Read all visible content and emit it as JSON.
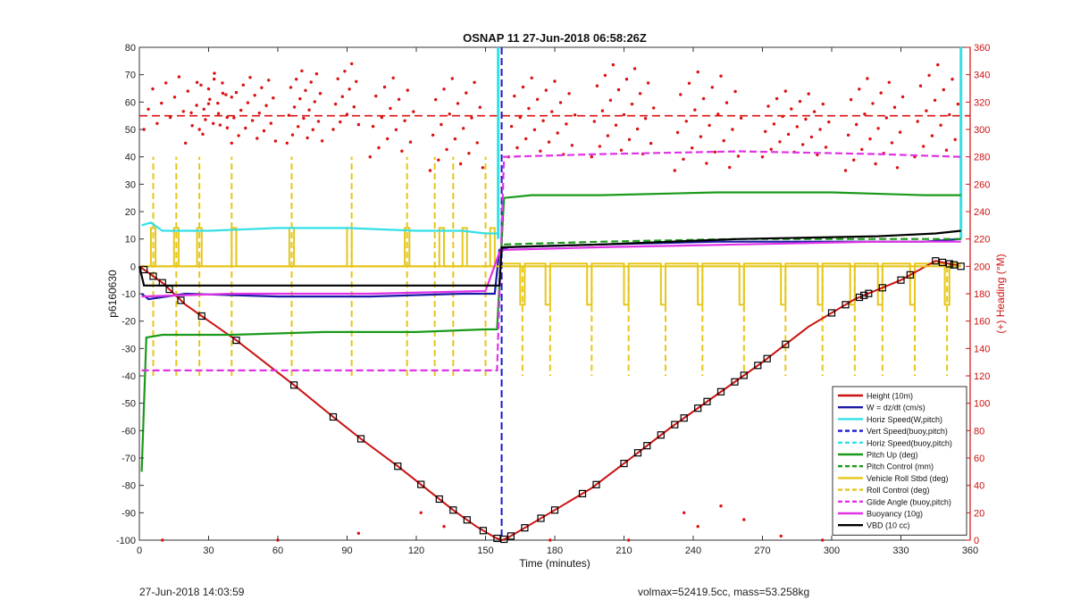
{
  "chart_data": {
    "type": "line",
    "title": "OSNAP 11 27-Jun-2018 06:58:26Z",
    "xlabel": "Time (minutes)",
    "ylabel": "p6160630",
    "ylabel_right": "(+) Heading (°M)",
    "xlim": [
      0,
      360
    ],
    "ylim": [
      -100,
      80
    ],
    "ylim_right": [
      0,
      360
    ],
    "xticks": [
      0,
      30,
      60,
      90,
      120,
      150,
      180,
      210,
      240,
      270,
      300,
      330,
      360
    ],
    "yticks": [
      -100,
      -90,
      -80,
      -70,
      -60,
      -50,
      -40,
      -30,
      -20,
      -10,
      0,
      10,
      20,
      30,
      40,
      50,
      60,
      70,
      80
    ],
    "yticks_right": [
      0,
      20,
      40,
      60,
      80,
      100,
      120,
      140,
      160,
      180,
      200,
      220,
      240,
      260,
      280,
      300,
      320,
      340,
      360
    ],
    "grid": false,
    "legend_position": "bottom-right",
    "colors": {
      "height": "#cc1111",
      "w": "#1a1aa6",
      "horiz_speed": "#33e0e6",
      "vert_speed": "#1a1ad0",
      "horiz_speed_buoy": "#33e0e6",
      "pitch": "#1a9a1a",
      "pitch_control": "#1a9a1a",
      "roll": "#e6c619",
      "roll_control": "#e6c619",
      "glide": "#e033e6",
      "buoyancy": "#e033e6",
      "vbd": "#000000",
      "heading": "#dd1111"
    },
    "legend": [
      {
        "label": "Height (10m)",
        "key": "height",
        "dash": false
      },
      {
        "label": "W = dz/dt (cm/s)",
        "key": "w",
        "dash": false
      },
      {
        "label": "Horiz Speed(W,pitch)",
        "key": "horiz_speed",
        "dash": false
      },
      {
        "label": "Vert Speed(buoy,pitch)",
        "key": "vert_speed",
        "dash": true
      },
      {
        "label": "Horiz Speed(buoy,pitch)",
        "key": "horiz_speed_buoy",
        "dash": true
      },
      {
        "label": "Pitch Up (deg)",
        "key": "pitch",
        "dash": false
      },
      {
        "label": "Pitch Control (mm)",
        "key": "pitch_control",
        "dash": true
      },
      {
        "label": "Vehicle Roll Stbd (deg)",
        "key": "roll",
        "dash": false
      },
      {
        "label": "Roll Control (deg)",
        "key": "roll_control",
        "dash": true
      },
      {
        "label": "Glide Angle (buoy,pitch)",
        "key": "glide",
        "dash": true
      },
      {
        "label": "Buoyancy (10g)",
        "key": "buoyancy",
        "dash": false
      },
      {
        "label": "VBD (10 cc)",
        "key": "vbd",
        "dash": false
      }
    ],
    "series": [
      {
        "name": "Height (10m)",
        "key": "height",
        "x": [
          0,
          10,
          20,
          42,
          68,
          84,
          96,
          112,
          124,
          136,
          146,
          154,
          157,
          160,
          168,
          180,
          196,
          210,
          230,
          250,
          270,
          290,
          310,
          330,
          345,
          356
        ],
        "values": [
          0,
          -6,
          -14,
          -27,
          -44,
          -55,
          -63,
          -73,
          -81,
          -89,
          -95,
          -99,
          -100,
          -99,
          -95,
          -89,
          -81,
          -72,
          -59,
          -47,
          -35,
          -22,
          -12,
          -5,
          2,
          0
        ]
      },
      {
        "name": "W = dz/dt (cm/s)",
        "key": "w",
        "x": [
          1,
          4,
          20,
          60,
          100,
          140,
          154,
          156,
          160,
          200,
          250,
          300,
          340,
          356
        ],
        "values": [
          -10,
          -12,
          -10,
          -11,
          -11,
          -10,
          -10,
          6,
          7,
          8,
          9,
          9,
          9,
          10
        ]
      },
      {
        "name": "Horiz Speed(W,pitch)",
        "key": "horiz_speed",
        "x": [
          1,
          5,
          10,
          30,
          60,
          90,
          120,
          140,
          150,
          155
        ],
        "values": [
          15,
          16,
          13,
          13,
          14,
          14,
          13,
          13,
          12,
          12
        ]
      },
      {
        "name": "Pitch Up (deg)",
        "key": "pitch",
        "x": [
          1,
          3,
          10,
          40,
          80,
          120,
          150,
          155,
          158,
          170,
          200,
          250,
          300,
          340,
          356
        ],
        "values": [
          -75,
          -26,
          -25,
          -25,
          -24,
          -24,
          -23,
          -23,
          25,
          26,
          26,
          27,
          27,
          26,
          26
        ]
      },
      {
        "name": "Pitch Control (mm)",
        "key": "pitch_control",
        "x": [
          158,
          200,
          260,
          300,
          356
        ],
        "values": [
          8,
          9,
          10,
          10,
          10
        ]
      },
      {
        "name": "Vehicle Roll Stbd (deg)",
        "key": "roll",
        "x": [
          1,
          150,
          157,
          356
        ],
        "values": [
          0,
          0,
          0,
          0
        ]
      },
      {
        "name": "Glide Angle (buoy,pitch)",
        "key": "glide",
        "x": [
          1,
          40,
          100,
          155,
          158,
          200,
          260,
          320,
          356
        ],
        "values": [
          -38,
          -38,
          -38,
          -38,
          40,
          41,
          42,
          41,
          40
        ]
      },
      {
        "name": "Buoyancy (10g)",
        "key": "buoyancy",
        "x": [
          1,
          40,
          100,
          150,
          156,
          158,
          200,
          260,
          320,
          356
        ],
        "values": [
          -11,
          -10,
          -10,
          -9,
          5,
          6,
          7,
          8,
          9,
          9
        ]
      },
      {
        "name": "VBD (10 cc)",
        "key": "vbd",
        "x": [
          0,
          2,
          40,
          150,
          156,
          157,
          200,
          260,
          320,
          345,
          356
        ],
        "values": [
          0,
          -7,
          -7,
          -7,
          -7,
          7,
          8,
          10,
          11,
          12,
          13
        ]
      }
    ],
    "heading_ref_y": 310
  },
  "footer": {
    "left": "27-Jun-2018 14:03:59",
    "right": "volmax=52419.5cc, mass=53.258kg"
  }
}
